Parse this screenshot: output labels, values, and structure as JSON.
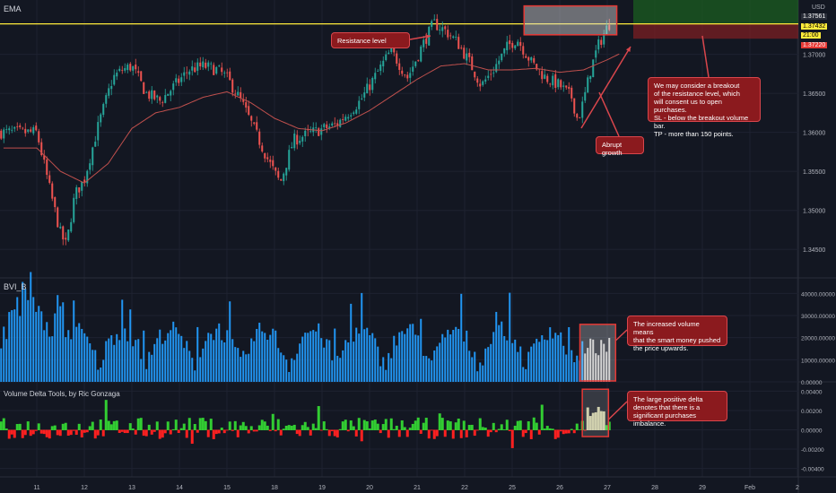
{
  "panels": {
    "price_title": "EMA",
    "volume_title": "BVI_B",
    "delta_title": "Volume Delta Tools, by Ric Gonzaga",
    "currency": "USD"
  },
  "price_badges": {
    "top": "1.37561",
    "current": "1.37432",
    "countdown": "21:00",
    "bottom": "1.37220"
  },
  "annotations": {
    "resistance": "Resistance level",
    "breakout": "We may consider a breakout\nof the resistance level, which\nwill consent us to open purchases.\nSL - below the breakout volume bar.\nTP - more than 150 points.",
    "growth": "Abrupt growth",
    "volume": "The increased volume means\nthat the smart money pushed\nthe price upwards.",
    "delta": "The large positive delta\ndenotes that there is a\nsignificant purchases imbalance."
  },
  "colors": {
    "background": "#131722",
    "grid": "#1e2230",
    "bull": "#26a69a",
    "bear": "#ef5350",
    "ema": "#c0504d",
    "resistance_line": "#ffeb3b",
    "volume_bar": "#2196f3",
    "delta_up": "#32cd32",
    "delta_down": "#ff2020",
    "note_fill": "#8b1a1e",
    "target_zone": "#1b5e20"
  },
  "chart_data": [
    {
      "type": "candlestick",
      "title": "EMA",
      "unit": "USD",
      "x_ticks": [
        "11",
        "12",
        "13",
        "14",
        "15",
        "18",
        "19",
        "20",
        "21",
        "22",
        "25",
        "26",
        "27",
        "28",
        "29",
        "Feb",
        "2"
      ],
      "y_ticks": [
        "1.34500",
        "1.35000",
        "1.35500",
        "1.36000",
        "1.36500",
        "1.37000"
      ],
      "ylim": [
        1.3425,
        1.3765
      ],
      "resistance_level": 1.3739,
      "resistance_zone": [
        1.3725,
        1.3762
      ],
      "close_path": [
        [
          11,
          1.36
        ],
        [
          11.3,
          1.352
        ],
        [
          11.5,
          1.347
        ],
        [
          11.62,
          1.3455
        ],
        [
          11.8,
          1.352
        ],
        [
          12,
          1.354
        ],
        [
          12.3,
          1.361
        ],
        [
          12.6,
          1.367
        ],
        [
          12.8,
          1.368
        ],
        [
          13,
          1.3685
        ],
        [
          13.3,
          1.365
        ],
        [
          13.6,
          1.364
        ],
        [
          13.9,
          1.366
        ],
        [
          14.2,
          1.368
        ],
        [
          14.5,
          1.3685
        ],
        [
          14.8,
          1.368
        ],
        [
          15,
          1.367
        ],
        [
          15.3,
          1.364
        ],
        [
          15.6,
          1.36
        ],
        [
          15.9,
          1.356
        ],
        [
          16.12,
          1.3535
        ],
        [
          16.4,
          1.359
        ],
        [
          16.8,
          1.36
        ],
        [
          17.3,
          1.361
        ],
        [
          17.8,
          1.364
        ],
        [
          18.2,
          1.368
        ],
        [
          18.45,
          1.3705
        ],
        [
          18.8,
          1.367
        ],
        [
          19.1,
          1.371
        ],
        [
          19.35,
          1.374
        ],
        [
          19.6,
          1.373
        ],
        [
          19.85,
          1.3715
        ],
        [
          20.1,
          1.369
        ],
        [
          20.35,
          1.366
        ],
        [
          20.6,
          1.368
        ],
        [
          20.9,
          1.371
        ],
        [
          21.1,
          1.372
        ],
        [
          21.4,
          1.369
        ],
        [
          21.7,
          1.367
        ],
        [
          22,
          1.366
        ],
        [
          22.25,
          1.3645
        ],
        [
          22.38,
          1.3615
        ],
        [
          22.5,
          1.364
        ],
        [
          22.65,
          1.368
        ],
        [
          22.8,
          1.371
        ],
        [
          23.0,
          1.3735
        ],
        [
          23.12,
          1.3745
        ]
      ],
      "ema_path": [
        [
          11,
          1.358
        ],
        [
          11.5,
          1.355
        ],
        [
          12,
          1.3535
        ],
        [
          12.5,
          1.356
        ],
        [
          13,
          1.3605
        ],
        [
          13.5,
          1.3625
        ],
        [
          14,
          1.3632
        ],
        [
          14.5,
          1.3645
        ],
        [
          15,
          1.3652
        ],
        [
          15.5,
          1.3638
        ],
        [
          16,
          1.3618
        ],
        [
          16.5,
          1.3605
        ],
        [
          17,
          1.3602
        ],
        [
          17.5,
          1.3612
        ],
        [
          18,
          1.3628
        ],
        [
          18.5,
          1.3648
        ],
        [
          19,
          1.3668
        ],
        [
          19.5,
          1.3685
        ],
        [
          20,
          1.3688
        ],
        [
          20.5,
          1.368
        ],
        [
          21,
          1.368
        ],
        [
          21.5,
          1.3682
        ],
        [
          22,
          1.3677
        ],
        [
          22.5,
          1.368
        ],
        [
          23,
          1.3693
        ],
        [
          23.3,
          1.3702
        ]
      ]
    },
    {
      "type": "bar",
      "title": "BVI_B",
      "y_ticks": [
        "0.00000",
        "10000.00000",
        "20000.00000",
        "30000.00000",
        "40000.00000"
      ],
      "ylim": [
        0,
        45000
      ],
      "highlight_range": [
        22.5,
        23.1
      ]
    },
    {
      "type": "area",
      "title": "Volume Delta Tools, by Ric Gonzaga",
      "y_ticks": [
        "0.00400",
        "0.00200",
        "0.00000",
        "-0.00200",
        "-0.00400"
      ],
      "ylim": [
        -0.0045,
        0.0045
      ],
      "highlight_range": [
        22.55,
        22.95
      ]
    }
  ]
}
